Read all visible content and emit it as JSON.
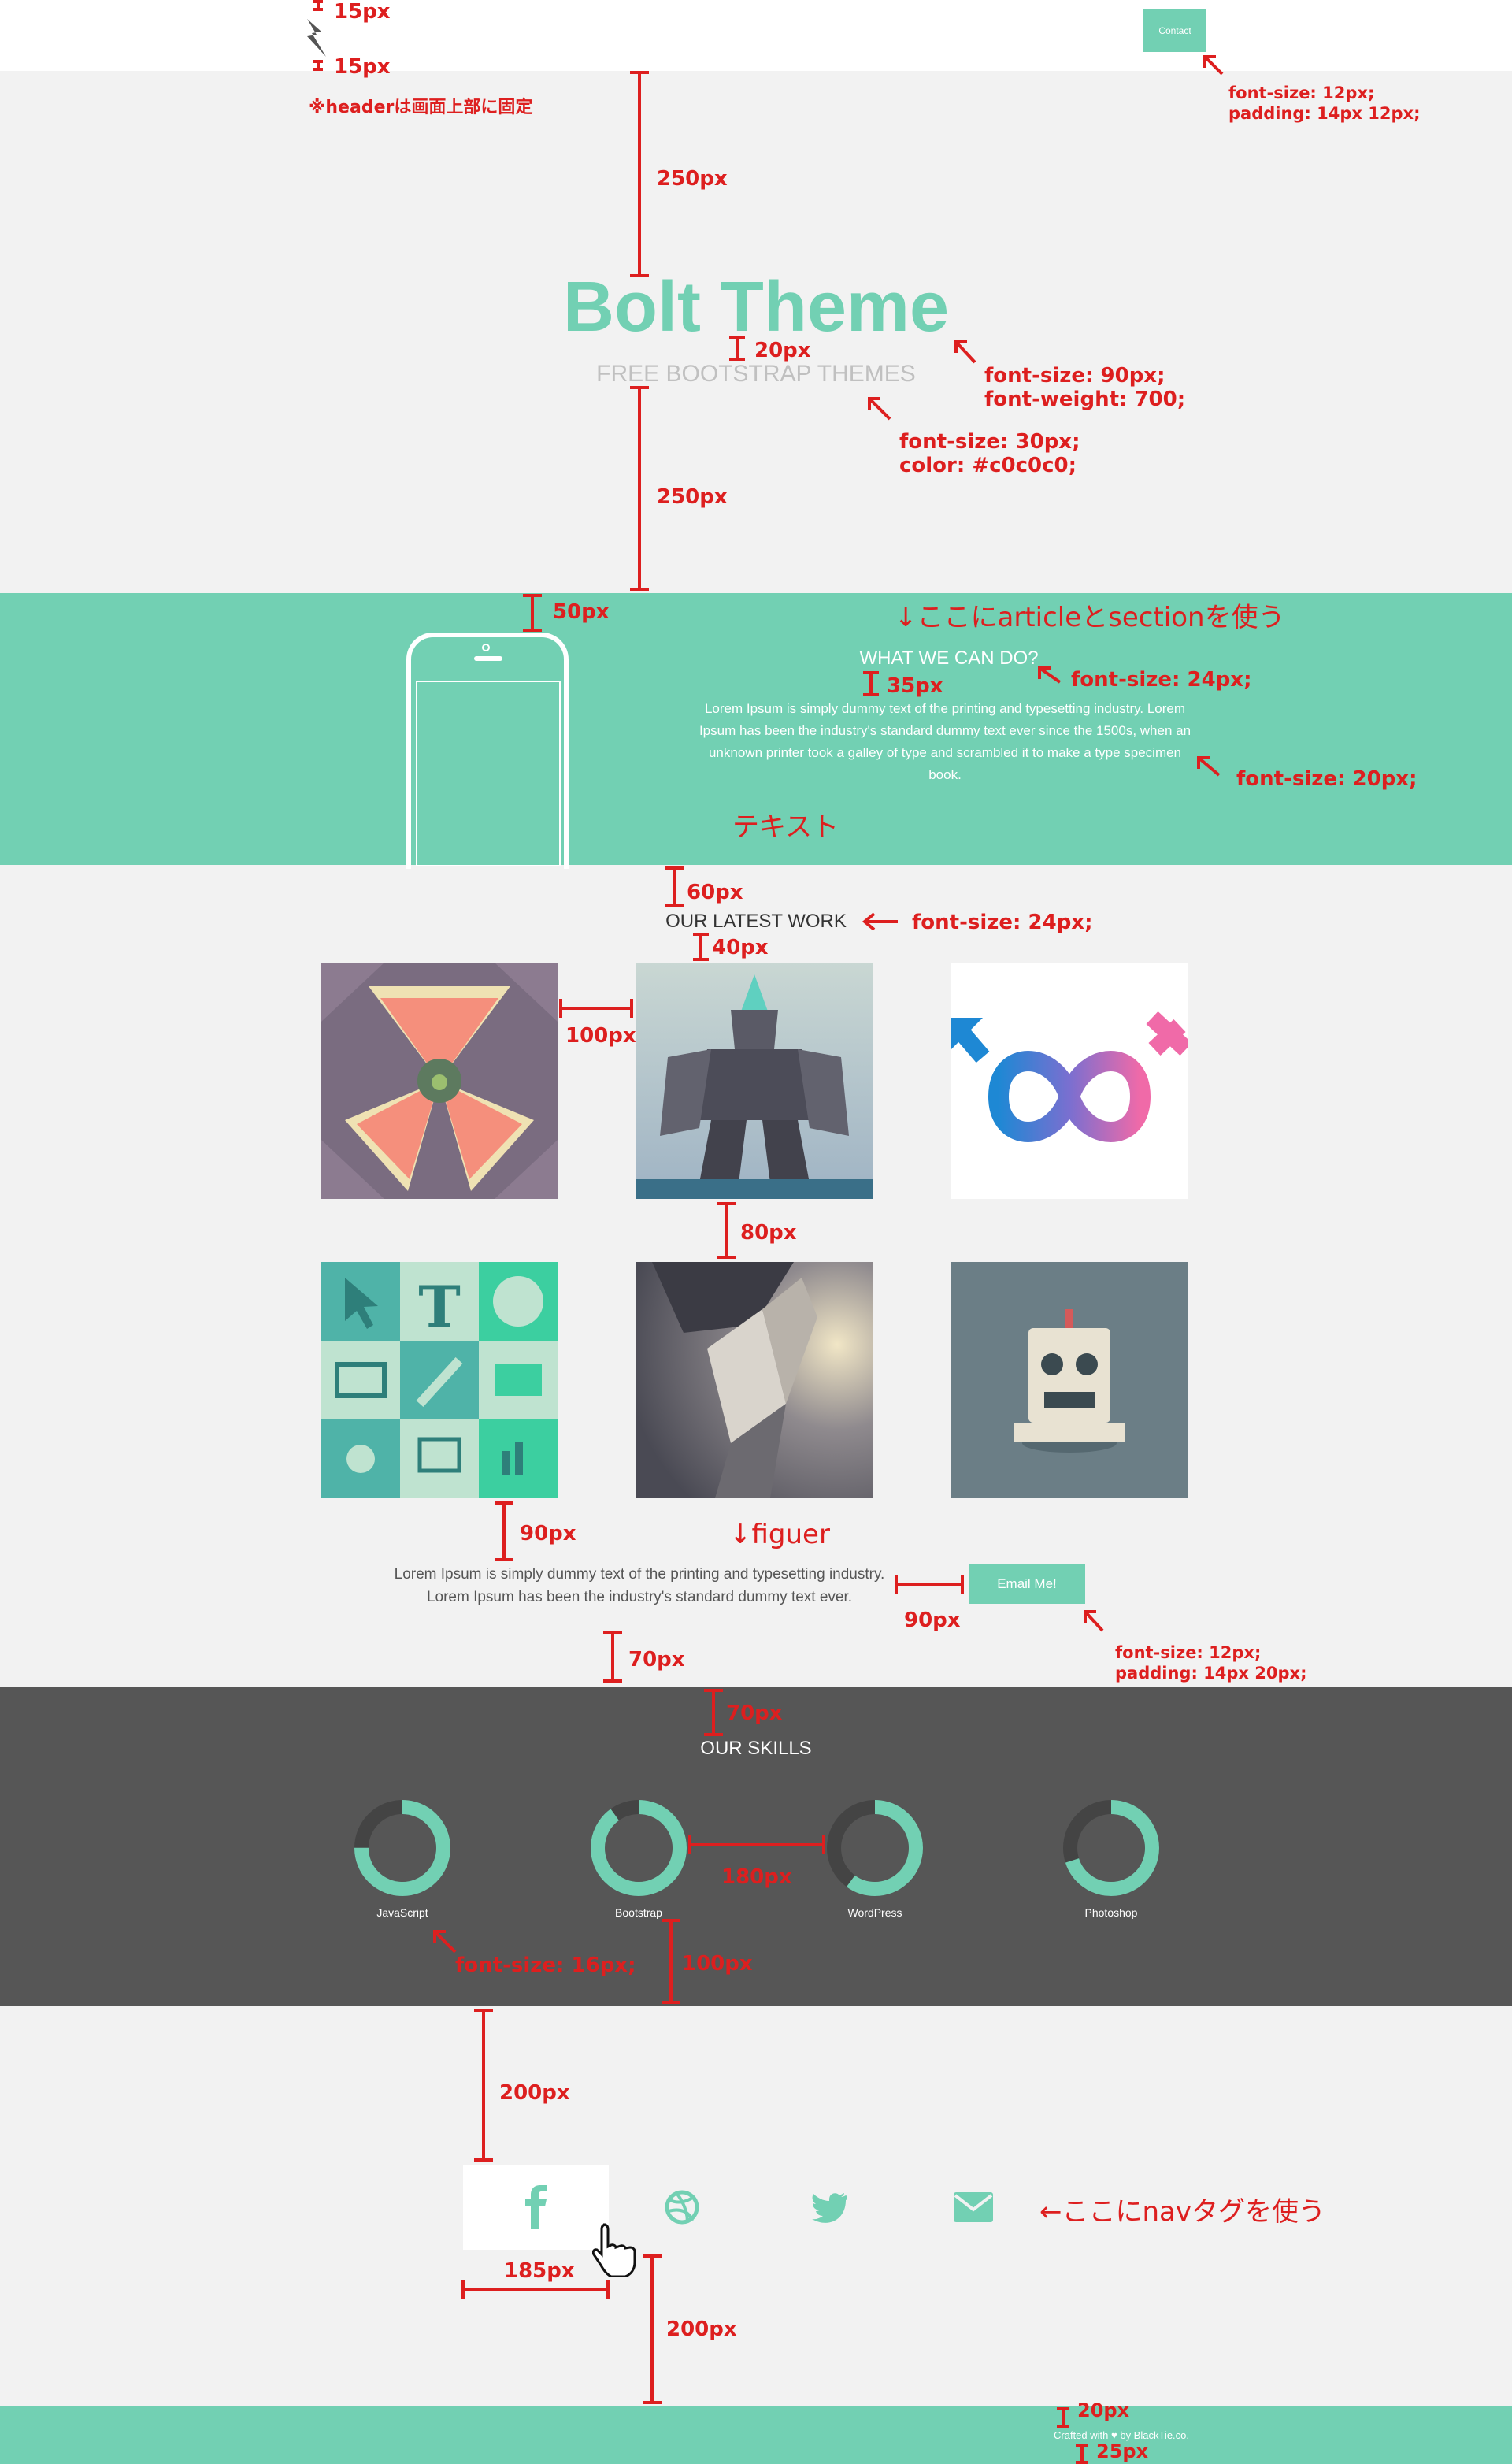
{
  "header": {
    "contact_label": "Contact"
  },
  "hero": {
    "title": "Bolt Theme",
    "subtitle": "FREE BOOTSTRAP THEMES"
  },
  "intro": {
    "title": "WHAT WE CAN DO?",
    "body": "Lorem Ipsum is simply dummy text of the printing and typesetting industry. Lorem Ipsum has been the industry's standard dummy text ever since the 1500s, when an unknown printer took a galley of type and scrambled it to make a type specimen book."
  },
  "work": {
    "title": "OUR LATEST WORK",
    "tiles": [
      "phones-hexagon",
      "robot-warrior",
      "gender-infinity",
      "tool-icons-grid",
      "paper-giant",
      "retro-robot"
    ]
  },
  "contact": {
    "text": "Lorem Ipsum is simply dummy text of the printing and typesetting industry. Lorem Ipsum has been the industry's standard dummy text ever.",
    "email_label": "Email Me!"
  },
  "skills": {
    "title": "OUR SKILLS",
    "items": [
      {
        "label": "JavaScript",
        "percent": 75
      },
      {
        "label": "Bootstrap",
        "percent": 90
      },
      {
        "label": "WordPress",
        "percent": 60
      },
      {
        "label": "Photoshop",
        "percent": 70
      }
    ]
  },
  "social": {
    "items": [
      "facebook-icon",
      "dribbble-icon",
      "twitter-icon",
      "mail-icon"
    ]
  },
  "footer": {
    "pre": "Crafted with",
    "post": "by BlackTie.co."
  },
  "annotations": {
    "a15a": "15px",
    "a15b": "15px",
    "header_fixed": "※headerは画面上部に固定",
    "contact_font": "font-size: 12px;",
    "contact_pad": "padding: 14px 12px;",
    "a250a": "250px",
    "a20": "20px",
    "title_font": "font-size: 90px;",
    "title_weight": "font-weight: 700;",
    "sub_font": "font-size: 30px;",
    "sub_color": "color: #c0c0c0;",
    "a250b": "250px",
    "a50": "50px",
    "article_note": "↓ここにarticleとsectionを使う",
    "a35": "35px",
    "what_font": "font-size: 24px;",
    "body_font": "font-size: 20px;",
    "text_note": "テキスト",
    "a60": "60px",
    "work_font": "font-size: 24px;",
    "a40": "40px",
    "a100": "100px",
    "a80": "80px",
    "a90a": "90px",
    "figure_note": "↓figuer",
    "a90b": "90px",
    "email_font": "font-size: 12px;",
    "email_pad": "padding: 14px 20px;",
    "a70a": "70px",
    "a70b": "70px",
    "a180": "180px",
    "skill_font": "font-size: 16px;",
    "a100b": "100px",
    "a200a": "200px",
    "nav_note": "←ここにnavタグを使う",
    "a185": "185px",
    "a200b": "200px",
    "a20f": "20px",
    "a25f": "25px"
  },
  "colors": {
    "accent": "#72d0b3",
    "dark": "#565656",
    "annotation": "#dd1f1f",
    "subtitle": "#c0c0c0"
  }
}
